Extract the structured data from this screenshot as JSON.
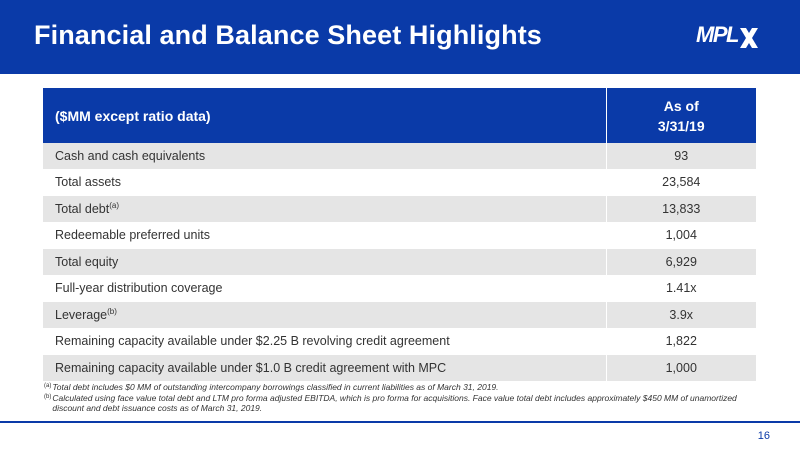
{
  "header": {
    "title": "Financial and Balance Sheet Highlights",
    "logo_text": "MPL",
    "brand_color": "#0a3aa8"
  },
  "table": {
    "col_label": "($MM except ratio data)",
    "col_value_line1": "As of",
    "col_value_line2": "3/31/19",
    "rows": [
      {
        "label": "Cash and cash equivalents",
        "mark": "",
        "value": "93"
      },
      {
        "label": "Total assets",
        "mark": "",
        "value": "23,584"
      },
      {
        "label": "Total debt",
        "mark": "(a)",
        "value": "13,833"
      },
      {
        "label": "Redeemable preferred units",
        "mark": "",
        "value": "1,004"
      },
      {
        "label": "Total equity",
        "mark": "",
        "value": "6,929"
      },
      {
        "label": "Full-year distribution coverage",
        "mark": "",
        "value": "1.41x"
      },
      {
        "label": "Leverage",
        "mark": "(b)",
        "value": "3.9x"
      },
      {
        "label": "Remaining capacity available under $2.25 B revolving credit agreement",
        "mark": "",
        "value": "1,822"
      },
      {
        "label": "Remaining capacity available under $1.0 B credit agreement with MPC",
        "mark": "",
        "value": "1,000"
      }
    ]
  },
  "footnotes": [
    {
      "mark": "(a)",
      "text": "Total debt includes $0 MM of outstanding intercompany borrowings classified in current liabilities as of March 31, 2019."
    },
    {
      "mark": "(b)",
      "text": "Calculated using face value total debt and LTM pro forma adjusted EBITDA, which is pro forma for acquisitions. Face value total debt includes approximately $450 MM of unamortized discount and debt issuance costs as of March 31, 2019."
    }
  ],
  "page_number": "16"
}
